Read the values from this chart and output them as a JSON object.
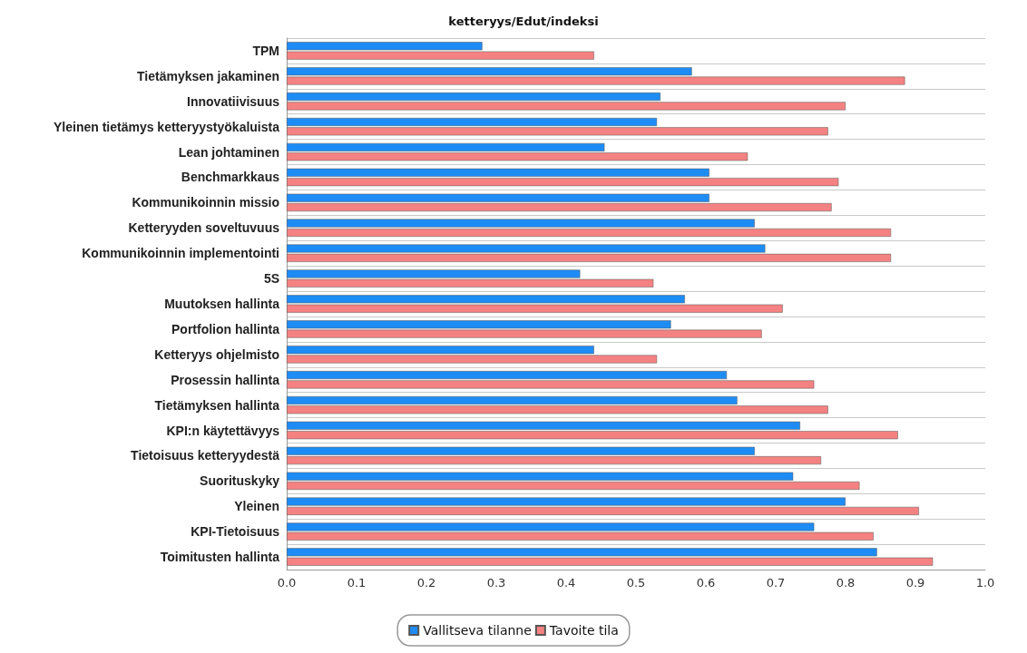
{
  "chart_data": {
    "type": "bar",
    "orientation": "horizontal",
    "title": "ketteryys/Edut/indeksi",
    "categories": [
      "TPM",
      "Tietämyksen jakaminen",
      "Innovatiivisuus",
      "Yleinen tietämys ketteryystyökaluista",
      "Lean johtaminen",
      "Benchmarkkaus",
      "Kommunikoinnin missio",
      "Ketteryyden soveltuvuus",
      "Kommunikoinnin implementointi",
      "5S",
      "Muutoksen hallinta",
      "Portfolion hallinta",
      "Ketteryys ohjelmisto",
      "Prosessin hallinta",
      "Tietämyksen hallinta",
      "KPI:n käytettävyys",
      "Tietoisuus ketteryydestä",
      "Suorituskyky",
      "Yleinen",
      "KPI-Tietoisuus",
      "Toimitusten hallinta"
    ],
    "series": [
      {
        "name": "Vallitseva tilanne",
        "color": "#1e8cf5",
        "values": [
          0.28,
          0.58,
          0.535,
          0.53,
          0.455,
          0.605,
          0.605,
          0.67,
          0.685,
          0.42,
          0.57,
          0.55,
          0.44,
          0.63,
          0.645,
          0.735,
          0.67,
          0.725,
          0.8,
          0.755,
          0.845
        ]
      },
      {
        "name": "Tavoite tila",
        "color": "#f58282",
        "values": [
          0.44,
          0.885,
          0.8,
          0.775,
          0.66,
          0.79,
          0.78,
          0.865,
          0.865,
          0.525,
          0.71,
          0.68,
          0.53,
          0.755,
          0.775,
          0.875,
          0.765,
          0.82,
          0.905,
          0.84,
          0.925
        ]
      }
    ],
    "xlim": [
      0,
      1
    ],
    "xticks": [
      {
        "value": 0,
        "label": "0.0"
      },
      0.1,
      0.2,
      0.3,
      0.4,
      0.5,
      0.6,
      0.7,
      0.8,
      0.9,
      {
        "value": 1,
        "label": "1.0"
      }
    ],
    "grid": "y",
    "legend": "bottom"
  }
}
